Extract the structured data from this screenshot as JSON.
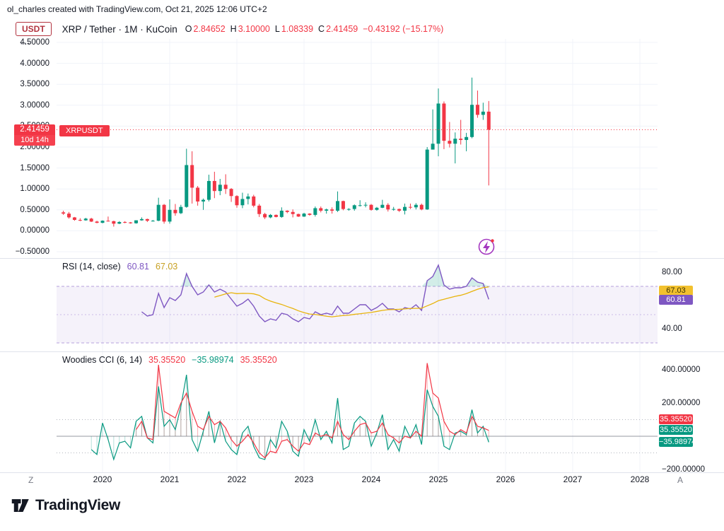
{
  "header": {
    "title": "ol_charles created with TradingView.com, Oct 21, 2025 12:06 UTC+2"
  },
  "legend": {
    "currency_badge": "USDT",
    "symbol": "XRP / Tether · 1M · KuCoin",
    "ohlc": {
      "o_l": "O",
      "o_v": "2.84652",
      "h_l": "H",
      "h_v": "3.10000",
      "l_l": "L",
      "l_v": "1.08339",
      "c_l": "C",
      "c_v": "2.41459",
      "chg": "−0.43192 (−15.17%)"
    },
    "more": "⋯"
  },
  "price_label": {
    "price": "2.41459",
    "countdown": "10d 14h",
    "symbol_tag": "XRPUSDT"
  },
  "rsi": {
    "title": "RSI (14, close)",
    "value": "60.81",
    "ma_value": "67.03",
    "badges": {
      "ma": "67.03",
      "value": "60.81"
    }
  },
  "cci": {
    "title": "Woodies CCI (6, 14)",
    "v1": "35.35520",
    "v2": "−35.98974",
    "v3": "35.35520",
    "badges": {
      "red": "35.35520",
      "teal": "35.35520",
      "teal2": "−35.98974"
    }
  },
  "time_axis": {
    "left_char": "Z",
    "right_char": "A"
  },
  "logo": {
    "text": "TradingView"
  },
  "colors": {
    "up": "#089981",
    "down": "#f23645",
    "rsi": "#7e57c2",
    "rsi_ma": "#e8b40c",
    "cci_fast": "#089981",
    "cci_slow": "#f23645",
    "grid": "#f0f3fa",
    "separator": "#e0e3eb"
  },
  "chart_data": {
    "type": "candlestick",
    "title": "XRP / Tether · 1M · KuCoin",
    "interval": "1M",
    "current_price": 2.41459,
    "x_axis": {
      "start": "2019-06",
      "year_ticks": [
        "2020",
        "2021",
        "2022",
        "2023",
        "2024",
        "2025",
        "2026",
        "2027",
        "2028"
      ]
    },
    "price_axis": {
      "min": -0.5,
      "max": 4.5,
      "ticks": [
        4.5,
        4.0,
        3.5,
        3.0,
        2.5,
        2.0,
        1.5,
        1.0,
        0.5,
        0.0,
        -0.5
      ],
      "tick_labels": [
        "4.50000",
        "4.00000",
        "3.50000",
        "3.00000",
        "2.50000",
        "2.00000",
        "1.50000",
        "1.00000",
        "0.50000",
        "0.00000",
        "−0.50000"
      ]
    },
    "candles": [
      [
        "2019-06",
        0.44,
        0.48,
        0.38,
        0.41
      ],
      [
        "2019-07",
        0.41,
        0.45,
        0.29,
        0.32
      ],
      [
        "2019-08",
        0.32,
        0.33,
        0.24,
        0.26
      ],
      [
        "2019-09",
        0.26,
        0.3,
        0.23,
        0.25
      ],
      [
        "2019-10",
        0.25,
        0.31,
        0.24,
        0.29
      ],
      [
        "2019-11",
        0.29,
        0.31,
        0.21,
        0.22
      ],
      [
        "2019-12",
        0.22,
        0.24,
        0.18,
        0.19
      ],
      [
        "2020-01",
        0.19,
        0.25,
        0.18,
        0.24
      ],
      [
        "2020-02",
        0.24,
        0.34,
        0.22,
        0.23
      ],
      [
        "2020-03",
        0.23,
        0.24,
        0.1,
        0.17
      ],
      [
        "2020-04",
        0.17,
        0.23,
        0.16,
        0.21
      ],
      [
        "2020-05",
        0.21,
        0.23,
        0.18,
        0.2
      ],
      [
        "2020-06",
        0.2,
        0.21,
        0.17,
        0.18
      ],
      [
        "2020-07",
        0.18,
        0.25,
        0.17,
        0.25
      ],
      [
        "2020-08",
        0.25,
        0.32,
        0.24,
        0.28
      ],
      [
        "2020-09",
        0.28,
        0.29,
        0.21,
        0.24
      ],
      [
        "2020-10",
        0.24,
        0.26,
        0.22,
        0.24
      ],
      [
        "2020-11",
        0.24,
        0.79,
        0.23,
        0.62
      ],
      [
        "2020-12",
        0.62,
        0.64,
        0.17,
        0.22
      ],
      [
        "2021-01",
        0.22,
        0.75,
        0.17,
        0.5
      ],
      [
        "2021-02",
        0.5,
        0.64,
        0.36,
        0.42
      ],
      [
        "2021-03",
        0.42,
        0.62,
        0.4,
        0.57
      ],
      [
        "2021-04",
        0.57,
        1.96,
        0.55,
        1.57
      ],
      [
        "2021-05",
        1.57,
        1.9,
        0.65,
        1.03
      ],
      [
        "2021-06",
        1.03,
        1.07,
        0.6,
        0.7
      ],
      [
        "2021-07",
        0.7,
        0.77,
        0.5,
        0.74
      ],
      [
        "2021-08",
        0.74,
        1.34,
        0.7,
        1.19
      ],
      [
        "2021-09",
        1.19,
        1.41,
        0.78,
        0.95
      ],
      [
        "2021-10",
        0.95,
        1.24,
        0.85,
        1.1
      ],
      [
        "2021-11",
        1.1,
        1.35,
        0.88,
        1.0
      ],
      [
        "2021-12",
        1.0,
        1.02,
        0.69,
        0.83
      ],
      [
        "2022-01",
        0.83,
        0.85,
        0.55,
        0.61
      ],
      [
        "2022-02",
        0.61,
        0.91,
        0.54,
        0.76
      ],
      [
        "2022-03",
        0.76,
        0.89,
        0.63,
        0.82
      ],
      [
        "2022-04",
        0.82,
        0.86,
        0.56,
        0.6
      ],
      [
        "2022-05",
        0.6,
        0.64,
        0.33,
        0.4
      ],
      [
        "2022-06",
        0.4,
        0.43,
        0.28,
        0.32
      ],
      [
        "2022-07",
        0.32,
        0.4,
        0.3,
        0.38
      ],
      [
        "2022-08",
        0.38,
        0.39,
        0.32,
        0.33
      ],
      [
        "2022-09",
        0.33,
        0.56,
        0.31,
        0.48
      ],
      [
        "2022-10",
        0.48,
        0.49,
        0.42,
        0.45
      ],
      [
        "2022-11",
        0.45,
        0.51,
        0.32,
        0.4
      ],
      [
        "2022-12",
        0.4,
        0.41,
        0.33,
        0.34
      ],
      [
        "2023-01",
        0.34,
        0.43,
        0.33,
        0.41
      ],
      [
        "2023-02",
        0.41,
        0.42,
        0.36,
        0.38
      ],
      [
        "2023-03",
        0.38,
        0.58,
        0.34,
        0.54
      ],
      [
        "2023-04",
        0.54,
        0.58,
        0.44,
        0.48
      ],
      [
        "2023-05",
        0.48,
        0.53,
        0.41,
        0.51
      ],
      [
        "2023-06",
        0.51,
        0.56,
        0.41,
        0.48
      ],
      [
        "2023-07",
        0.48,
        0.94,
        0.45,
        0.71
      ],
      [
        "2023-08",
        0.71,
        0.72,
        0.49,
        0.52
      ],
      [
        "2023-09",
        0.52,
        0.54,
        0.48,
        0.52
      ],
      [
        "2023-10",
        0.52,
        0.63,
        0.48,
        0.61
      ],
      [
        "2023-11",
        0.61,
        0.73,
        0.58,
        0.61
      ],
      [
        "2023-12",
        0.61,
        0.68,
        0.56,
        0.62
      ],
      [
        "2024-01",
        0.62,
        0.64,
        0.48,
        0.5
      ],
      [
        "2024-02",
        0.5,
        0.57,
        0.48,
        0.55
      ],
      [
        "2024-03",
        0.55,
        0.74,
        0.54,
        0.62
      ],
      [
        "2024-04",
        0.62,
        0.66,
        0.46,
        0.51
      ],
      [
        "2024-05",
        0.51,
        0.57,
        0.48,
        0.52
      ],
      [
        "2024-06",
        0.52,
        0.53,
        0.45,
        0.48
      ],
      [
        "2024-07",
        0.48,
        0.65,
        0.39,
        0.57
      ],
      [
        "2024-08",
        0.57,
        0.65,
        0.52,
        0.56
      ],
      [
        "2024-09",
        0.56,
        0.66,
        0.51,
        0.62
      ],
      [
        "2024-10",
        0.62,
        0.65,
        0.49,
        0.51
      ],
      [
        "2024-11",
        0.51,
        2.0,
        0.5,
        1.94
      ],
      [
        "2024-12",
        1.94,
        2.9,
        1.94,
        2.08
      ],
      [
        "2025-01",
        2.08,
        3.4,
        1.78,
        3.04
      ],
      [
        "2025-02",
        3.04,
        3.09,
        1.95,
        2.15
      ],
      [
        "2025-03",
        2.15,
        2.6,
        1.99,
        2.08
      ],
      [
        "2025-04",
        2.08,
        2.35,
        1.61,
        2.2
      ],
      [
        "2025-05",
        2.2,
        2.65,
        2.06,
        2.17
      ],
      [
        "2025-06",
        2.17,
        2.34,
        1.9,
        2.24
      ],
      [
        "2025-07",
        2.24,
        3.66,
        2.21,
        3.01
      ],
      [
        "2025-08",
        3.01,
        3.35,
        2.7,
        2.77
      ],
      [
        "2025-09",
        2.77,
        3.06,
        2.65,
        2.84652
      ],
      [
        "2025-10",
        2.84652,
        3.1,
        1.08339,
        2.41459
      ]
    ],
    "indicators": {
      "rsi": {
        "name": "RSI",
        "period": 14,
        "source": "close",
        "start_index": 14,
        "values": [
          52,
          49,
          50,
          65,
          55,
          62,
          60,
          64,
          79,
          70,
          64,
          66,
          71,
          66,
          68,
          66,
          61,
          56,
          58,
          61,
          56,
          49,
          45,
          47,
          46,
          51,
          50,
          47,
          45,
          48,
          47,
          52,
          50,
          51,
          50,
          56,
          51,
          51,
          54,
          57,
          57,
          53,
          55,
          58,
          54,
          54,
          52,
          55,
          54,
          57,
          53,
          74,
          77,
          85,
          71,
          68,
          69,
          69,
          70,
          76,
          73,
          72,
          60.81
        ],
        "last_value": 60.81,
        "ma_last": 67.03,
        "bands": [
          70,
          50,
          30
        ],
        "axis_ticks": [
          80,
          40
        ],
        "axis_labels": [
          "80.00",
          "40.00"
        ]
      },
      "woodies_cci": {
        "name": "Woodies CCI",
        "params": [
          6,
          14
        ],
        "cci6_start_index": 5,
        "cci6": [
          -80,
          -110,
          80,
          -20,
          -140,
          -40,
          -30,
          -70,
          90,
          120,
          -10,
          -40,
          300,
          60,
          100,
          40,
          180,
          370,
          -20,
          -90,
          30,
          150,
          -40,
          90,
          -30,
          -80,
          -110,
          20,
          60,
          -60,
          -130,
          -140,
          -20,
          -70,
          90,
          30,
          -90,
          -120,
          40,
          -30,
          100,
          -20,
          30,
          -40,
          230,
          -80,
          -60,
          80,
          120,
          90,
          -60,
          20,
          130,
          -80,
          -20,
          -90,
          60,
          -10,
          70,
          -50,
          280,
          180,
          120,
          -60,
          -80,
          20,
          30,
          10,
          160,
          20,
          60,
          -35.98974
        ],
        "cci14_start_index": 13,
        "cci14": [
          40,
          90,
          -10,
          -20,
          430,
          150,
          130,
          110,
          200,
          260,
          150,
          60,
          40,
          120,
          70,
          90,
          50,
          -20,
          -60,
          -30,
          10,
          -40,
          -100,
          -130,
          -90,
          -100,
          -30,
          -20,
          -60,
          -90,
          -40,
          -50,
          20,
          0,
          10,
          -10,
          90,
          10,
          -20,
          30,
          70,
          80,
          20,
          30,
          80,
          10,
          -10,
          -40,
          0,
          -10,
          30,
          0,
          440,
          260,
          230,
          90,
          30,
          10,
          40,
          20,
          120,
          60,
          50,
          35.3552
        ],
        "last_cci14": 35.3552,
        "last_cci6": -35.98974,
        "guides": [
          100,
          0,
          -100
        ],
        "axis_ticks": [
          400,
          200,
          -200
        ],
        "axis_labels": [
          "400.00000",
          "200.00000",
          "−200.00000"
        ]
      }
    }
  }
}
